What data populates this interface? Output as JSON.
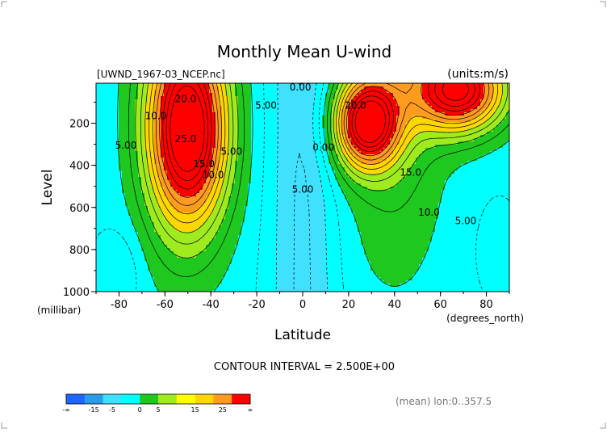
{
  "chart_data": {
    "type": "heatmap",
    "title": "Monthly Mean U-wind",
    "file_label": "[UWND_1967-03_NCEP.nc]",
    "units_label": "(units:m/s)",
    "xlabel": "Latitude",
    "x_unit": "(degrees_north)",
    "ylabel": "Level",
    "y_unit": "(millibar)",
    "xlim": [
      -90,
      90
    ],
    "ylim": [
      1000,
      10
    ],
    "x_ticks": [
      -80,
      -60,
      -40,
      -20,
      0,
      20,
      40,
      60,
      80
    ],
    "y_ticks": [
      200,
      400,
      600,
      800,
      1000
    ],
    "contour_interval_text": "CONTOUR INTERVAL = 2.500E+00",
    "footer_text": "(mean) lon:0..357.5",
    "jets": [
      {
        "lat": -50,
        "level": 250,
        "max": 27
      },
      {
        "lat": 28,
        "level": 200,
        "max": 28
      },
      {
        "lat": 68,
        "level": 40,
        "max": 28
      }
    ],
    "contour_labels": [
      {
        "text": "20.0",
        "lat": -51,
        "level": 100
      },
      {
        "text": "10.0",
        "lat": -64,
        "level": 180
      },
      {
        "text": "5.00",
        "lat": -77,
        "level": 320
      },
      {
        "text": "25.0",
        "lat": -51,
        "level": 290
      },
      {
        "text": "15.0",
        "lat": -43,
        "level": 410
      },
      {
        "text": "10.0",
        "lat": -39,
        "level": 460
      },
      {
        "text": "5.00",
        "lat": -31,
        "level": 350
      },
      {
        "text": "5.00",
        "lat": -16,
        "level": 130
      },
      {
        "text": "0.00",
        "lat": -1,
        "level": 45
      },
      {
        "text": "5.00",
        "lat": 0,
        "level": 530
      },
      {
        "text": "0.00",
        "lat": 9,
        "level": 330
      },
      {
        "text": "20.0",
        "lat": 23,
        "level": 130
      },
      {
        "text": "15.0",
        "lat": 47,
        "level": 450
      },
      {
        "text": "10.0",
        "lat": 55,
        "level": 640
      },
      {
        "text": "5.00",
        "lat": 71,
        "level": 680
      }
    ],
    "colorbar": {
      "labels": [
        "-∞",
        "-15",
        "-5",
        "0",
        "5",
        "15",
        "25",
        "∞"
      ],
      "colors": [
        "#1e66ff",
        "#2b9ce8",
        "#40e0ff",
        "#00ffff",
        "#1ec81e",
        "#a0eb1e",
        "#ffff00",
        "#ffd700",
        "#ff9b1e",
        "#ff0000"
      ]
    }
  }
}
